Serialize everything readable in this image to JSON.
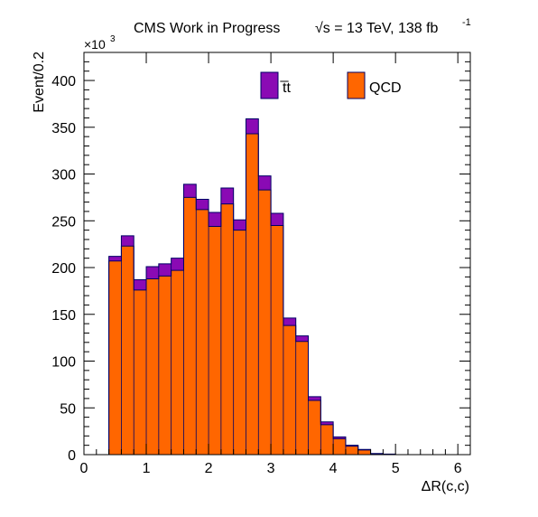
{
  "chart_data": {
    "type": "bar",
    "stacked": true,
    "title": "CMS Work in Progress",
    "title_energy": "√s = 13 TeV, 138 fb",
    "title_lumi_exp": "-1",
    "xlabel": "ΔR(c,c)",
    "ylabel": "Event/0.2",
    "y_multiplier": "×10",
    "y_multiplier_exp": "3",
    "xlim": [
      0,
      6.2
    ],
    "ylim": [
      0,
      430
    ],
    "x_ticks": [
      0,
      1,
      2,
      3,
      4,
      5,
      6
    ],
    "y_ticks": [
      0,
      50,
      100,
      150,
      200,
      250,
      300,
      350,
      400
    ],
    "bin_width": 0.2,
    "bin_edges_start": 0.4,
    "legend_position": "top-center",
    "series": [
      {
        "name": "QCD",
        "color": "#ff6600",
        "values": [
          207,
          223,
          176,
          188,
          191,
          197,
          275,
          262,
          244,
          268,
          240,
          343,
          283,
          245,
          138,
          121,
          58,
          32,
          17,
          9,
          5,
          1,
          0.5
        ]
      },
      {
        "name": "t̅t",
        "color": "#8a0ab4",
        "values": [
          5,
          11,
          11,
          13,
          13,
          13,
          14,
          11,
          15,
          17,
          11,
          16,
          15,
          13,
          8,
          6,
          4,
          3,
          2,
          1,
          0.5,
          0.2,
          0.1
        ]
      }
    ]
  }
}
